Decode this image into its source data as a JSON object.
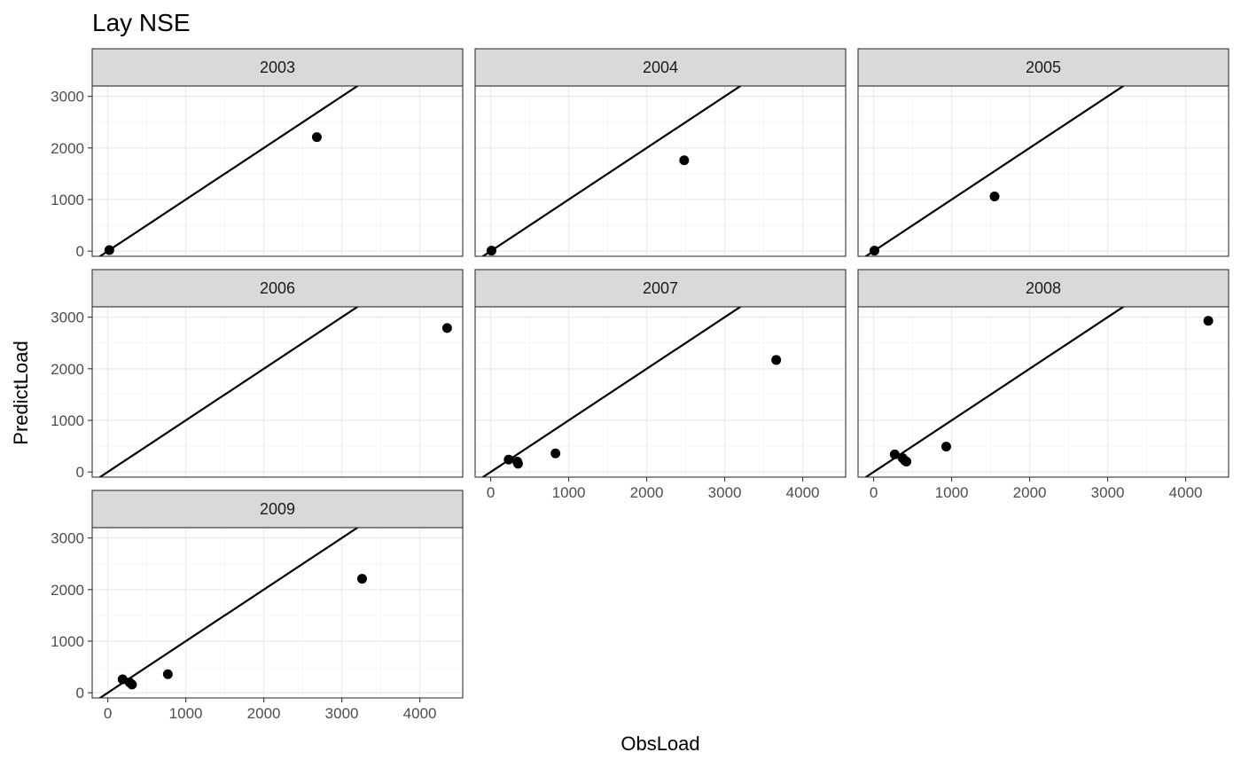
{
  "chart_data": {
    "type": "scatter",
    "title": "Lay NSE",
    "xlabel": "ObsLoad",
    "ylabel": "PredictLoad",
    "facet_layout": "wrap, 3 columns",
    "xlim": [
      -200,
      4550
    ],
    "ylim": [
      -100,
      3200
    ],
    "x_ticks": [
      0,
      1000,
      2000,
      3000,
      4000
    ],
    "y_ticks": [
      0,
      1000,
      2000,
      3000
    ],
    "grid": true,
    "reference_line": {
      "type": "abline",
      "slope": 1,
      "intercept": 0
    },
    "panels": [
      {
        "label": "2003",
        "points": [
          {
            "x": 20,
            "y": 20
          },
          {
            "x": 2680,
            "y": 2210
          }
        ]
      },
      {
        "label": "2004",
        "points": [
          {
            "x": 10,
            "y": 10
          },
          {
            "x": 2480,
            "y": 1760
          }
        ]
      },
      {
        "label": "2005",
        "points": [
          {
            "x": 10,
            "y": 10
          },
          {
            "x": 1550,
            "y": 1060
          }
        ]
      },
      {
        "label": "2006",
        "points": [
          {
            "x": 4350,
            "y": 2790
          }
        ]
      },
      {
        "label": "2007",
        "points": [
          {
            "x": 230,
            "y": 240
          },
          {
            "x": 340,
            "y": 200
          },
          {
            "x": 350,
            "y": 160
          },
          {
            "x": 830,
            "y": 360
          },
          {
            "x": 3660,
            "y": 2170
          }
        ]
      },
      {
        "label": "2008",
        "points": [
          {
            "x": 270,
            "y": 340
          },
          {
            "x": 370,
            "y": 270
          },
          {
            "x": 400,
            "y": 220
          },
          {
            "x": 420,
            "y": 200
          },
          {
            "x": 930,
            "y": 490
          },
          {
            "x": 4290,
            "y": 2930
          }
        ]
      },
      {
        "label": "2009",
        "points": [
          {
            "x": 190,
            "y": 260
          },
          {
            "x": 280,
            "y": 200
          },
          {
            "x": 310,
            "y": 160
          },
          {
            "x": 770,
            "y": 360
          },
          {
            "x": 3260,
            "y": 2210
          }
        ]
      }
    ]
  }
}
